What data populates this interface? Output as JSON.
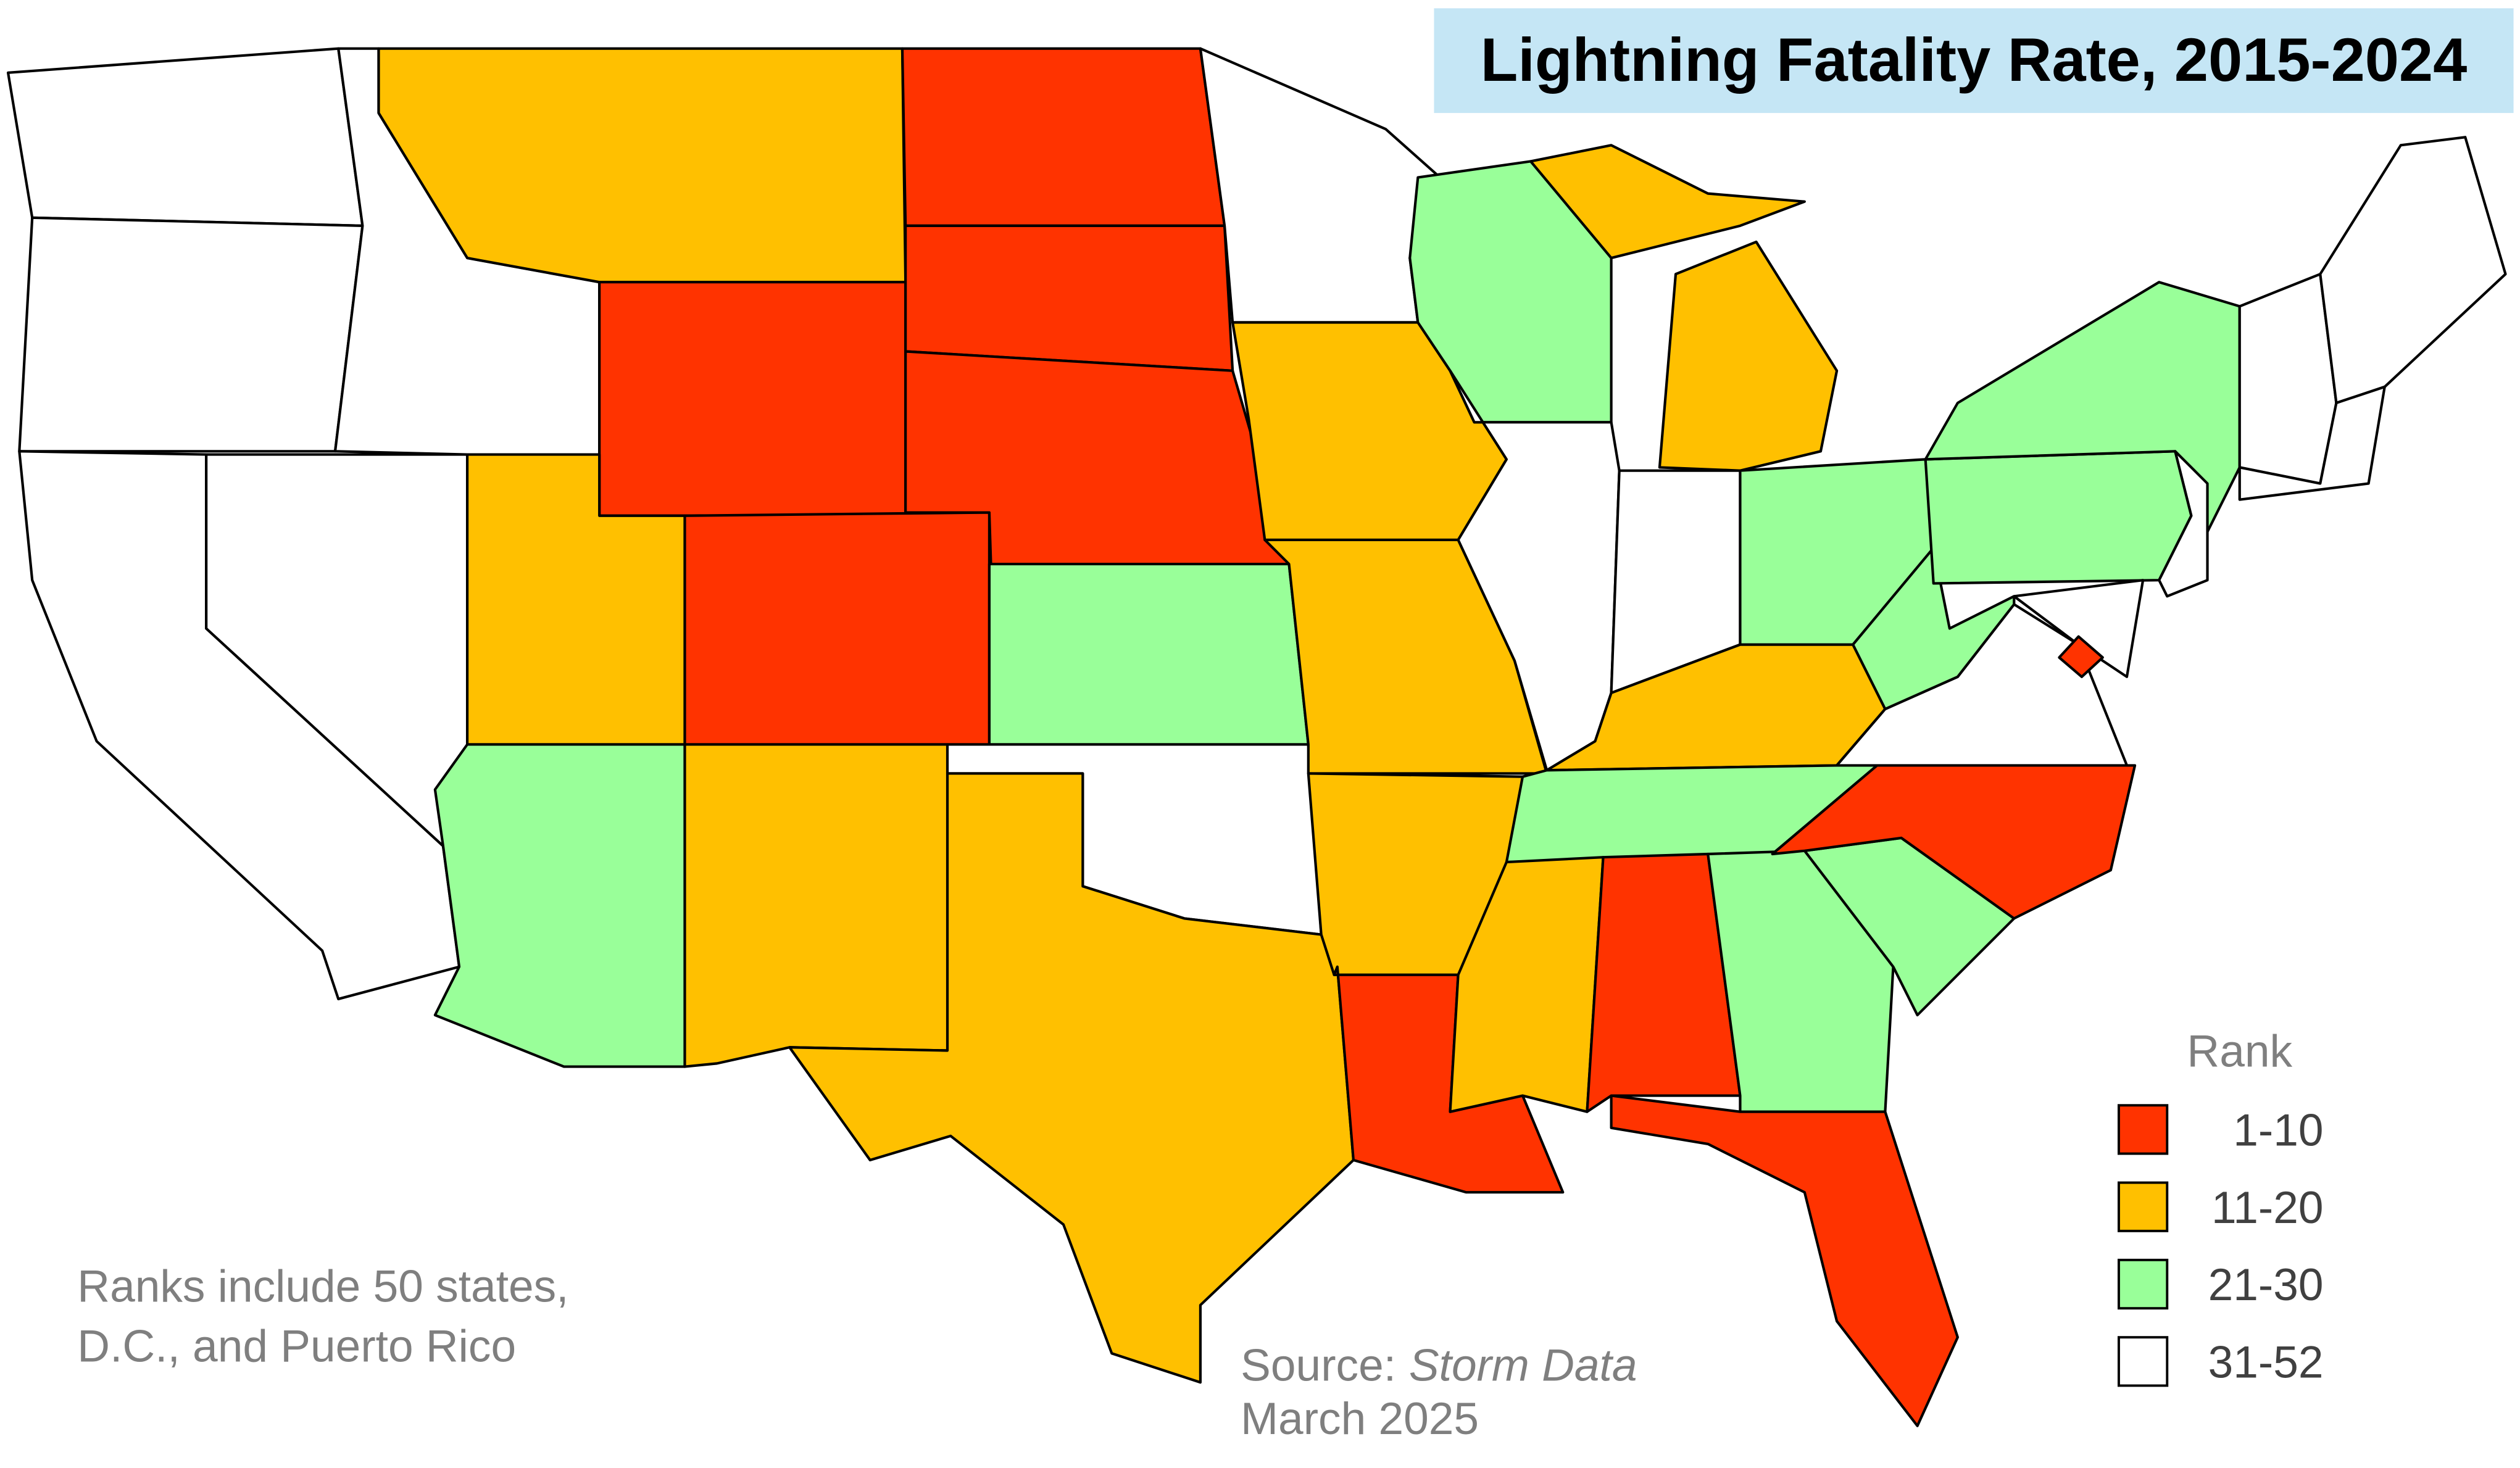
{
  "title": "Lightning Fatality Rate, 2015-2024",
  "legend": {
    "title": "Rank",
    "items": [
      {
        "label": "1-10",
        "color": "#ff3300"
      },
      {
        "label": "11-20",
        "color": "#ffc000"
      },
      {
        "label": "21-30",
        "color": "#99ff99"
      },
      {
        "label": "31-52",
        "color": "#ffffff"
      }
    ]
  },
  "note": [
    "Ranks include 50 states,",
    "D.C., and Puerto Rico"
  ],
  "source": {
    "label": "Source:",
    "name": "Storm Data",
    "date": "March 2025"
  }
}
